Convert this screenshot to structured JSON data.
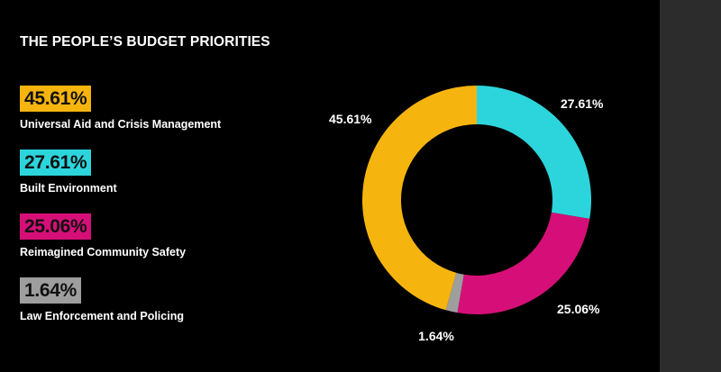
{
  "title": "THE PEOPLE’S BUDGET PRIORITIES",
  "colors": {
    "background": "#000000",
    "side_strip": "#2c2c2c"
  },
  "chart_data": {
    "type": "pie",
    "donut": true,
    "title": "THE PEOPLE’S BUDGET PRIORITIES",
    "legend_placement": "left",
    "slices": [
      {
        "name": "Universal Aid and Crisis Management",
        "label": "45.61%",
        "value": 45.61,
        "color": "#f6b40e"
      },
      {
        "name": "Built Environment",
        "label": "27.61%",
        "value": 27.61,
        "color": "#2cd5dc"
      },
      {
        "name": "Reimagined Community Safety",
        "label": "25.06%",
        "value": 25.06,
        "color": "#d60f78"
      },
      {
        "name": "Law Enforcement and Policing",
        "label": "1.64%",
        "value": 1.64,
        "color": "#9e9e9e"
      }
    ]
  }
}
